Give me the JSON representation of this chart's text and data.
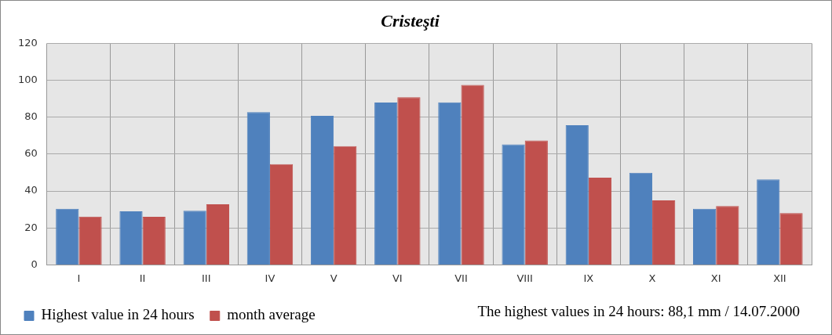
{
  "chart_data": {
    "type": "bar",
    "title": "Cristeşti",
    "categories": [
      "I",
      "II",
      "III",
      "IV",
      "V",
      "VI",
      "VII",
      "VIII",
      "IX",
      "X",
      "XI",
      "XII"
    ],
    "series": [
      {
        "name": "Highest value in 24 hours",
        "color": "#4f81bd",
        "values": [
          30.4,
          29,
          29.3,
          82.8,
          80.7,
          87.9,
          88.1,
          65.3,
          75.6,
          49.9,
          30.4,
          46.3
        ]
      },
      {
        "name": "month average",
        "color": "#c0504d",
        "values": [
          26.1,
          26,
          32.8,
          54.5,
          64.3,
          90.8,
          97.5,
          67.4,
          47.2,
          34.9,
          31.9,
          28
        ]
      }
    ],
    "ylim": [
      0,
      120
    ],
    "yticks": [
      0,
      20,
      40,
      60,
      80,
      100,
      120
    ],
    "grid": true,
    "legend": "bottom left",
    "annotations": [
      "The highest values in 24 hours: 88,1 mm / 14.07.2000"
    ]
  }
}
